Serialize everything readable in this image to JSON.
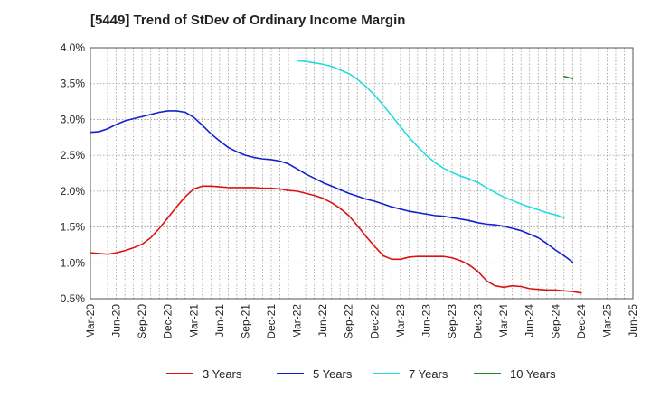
{
  "chart_data": {
    "type": "line",
    "title": "[5449]  Trend of StDev of Ordinary Income Margin",
    "xlabel": "",
    "ylabel": "",
    "x_ticks": [
      "Mar-20",
      "Jun-20",
      "Sep-20",
      "Dec-20",
      "Mar-21",
      "Jun-21",
      "Sep-21",
      "Dec-21",
      "Mar-22",
      "Jun-22",
      "Sep-22",
      "Dec-22",
      "Mar-23",
      "Jun-23",
      "Sep-23",
      "Dec-23",
      "Mar-24",
      "Jun-24",
      "Sep-24",
      "Dec-24",
      "Mar-25",
      "Jun-25"
    ],
    "y_ticks": [
      "0.5%",
      "1.0%",
      "1.5%",
      "2.0%",
      "2.5%",
      "3.0%",
      "3.5%",
      "4.0%"
    ],
    "ylim": [
      0.5,
      4.0
    ],
    "grid": true,
    "legend_position": "bottom",
    "series": [
      {
        "name": "3 Years",
        "color": "#dd1111",
        "start_index": 0,
        "values": [
          1.14,
          1.13,
          1.12,
          1.14,
          1.17,
          1.21,
          1.26,
          1.35,
          1.48,
          1.63,
          1.78,
          1.92,
          2.03,
          2.07,
          2.07,
          2.06,
          2.05,
          2.05,
          2.05,
          2.05,
          2.04,
          2.04,
          2.03,
          2.01,
          2.0,
          1.97,
          1.94,
          1.9,
          1.84,
          1.76,
          1.66,
          1.52,
          1.37,
          1.23,
          1.1,
          1.05,
          1.05,
          1.08,
          1.09,
          1.09,
          1.09,
          1.09,
          1.07,
          1.03,
          0.97,
          0.88,
          0.75,
          0.68,
          0.66,
          0.68,
          0.67,
          0.64,
          0.63,
          0.62,
          0.62,
          0.61,
          0.6,
          0.58
        ]
      },
      {
        "name": "5 Years",
        "color": "#1122cc",
        "start_index": 0,
        "values": [
          2.82,
          2.83,
          2.87,
          2.93,
          2.98,
          3.01,
          3.04,
          3.07,
          3.1,
          3.12,
          3.12,
          3.1,
          3.03,
          2.92,
          2.8,
          2.7,
          2.61,
          2.55,
          2.5,
          2.47,
          2.45,
          2.44,
          2.42,
          2.38,
          2.31,
          2.24,
          2.18,
          2.12,
          2.07,
          2.02,
          1.97,
          1.93,
          1.89,
          1.86,
          1.82,
          1.78,
          1.75,
          1.72,
          1.7,
          1.68,
          1.66,
          1.65,
          1.63,
          1.61,
          1.59,
          1.56,
          1.54,
          1.53,
          1.51,
          1.48,
          1.45,
          1.4,
          1.35,
          1.27,
          1.18,
          1.1,
          1.01
        ]
      },
      {
        "name": "7 Years",
        "color": "#22dddd",
        "start_index": 24,
        "values": [
          3.82,
          3.81,
          3.79,
          3.77,
          3.74,
          3.69,
          3.64,
          3.56,
          3.46,
          3.34,
          3.2,
          3.05,
          2.9,
          2.75,
          2.62,
          2.5,
          2.4,
          2.32,
          2.26,
          2.21,
          2.17,
          2.12,
          2.05,
          1.98,
          1.92,
          1.87,
          1.82,
          1.78,
          1.74,
          1.7,
          1.67,
          1.63
        ]
      },
      {
        "name": "10 Years",
        "color": "#228822",
        "start_index": 55,
        "values": [
          3.6,
          3.57
        ]
      }
    ]
  }
}
